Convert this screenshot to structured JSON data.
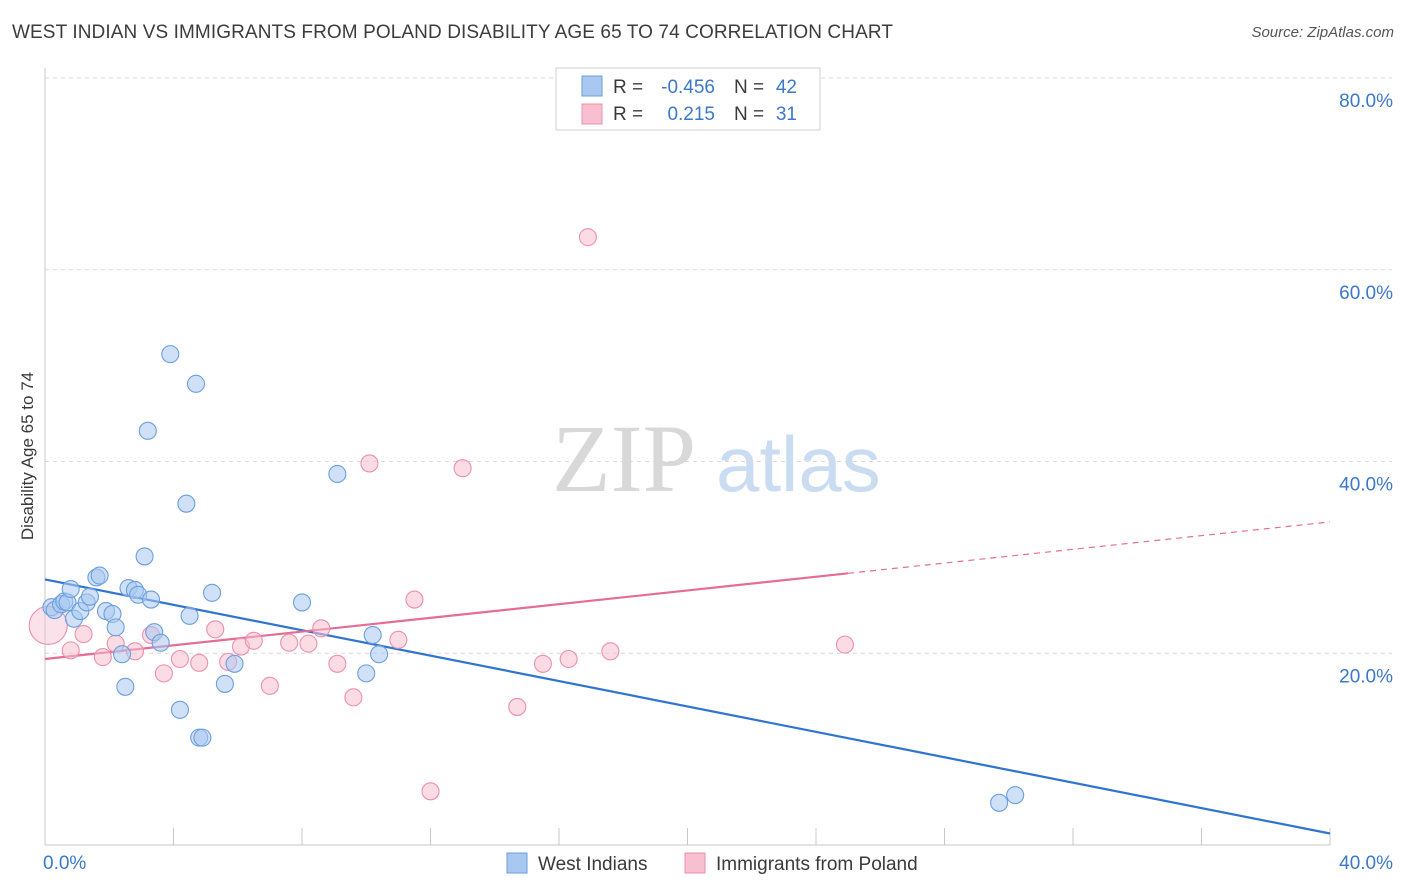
{
  "header": {
    "title": "WEST INDIAN VS IMMIGRANTS FROM POLAND DISABILITY AGE 65 TO 74 CORRELATION CHART",
    "source": "Source: ZipAtlas.com"
  },
  "watermark": {
    "zip": "ZIP",
    "atlas": "atlas"
  },
  "colors": {
    "blue_fill": "#a9c8f0",
    "blue_stroke": "#6a9fde",
    "blue_line": "#2f74d0",
    "pink_fill": "#f7bfd0",
    "pink_stroke": "#ec8fae",
    "pink_line": "#e56d95",
    "tick_text": "#3b78c9",
    "grid": "#d9d9d9"
  },
  "legend": {
    "rows": [
      {
        "r_label": "R =",
        "r_value": "-0.456",
        "n_label": "N =",
        "n_value": "42"
      },
      {
        "r_label": "R =",
        "r_value": "0.215",
        "n_label": "N =",
        "n_value": "31"
      }
    ]
  },
  "bottom_legend": {
    "series": [
      "West Indians",
      "Immigrants from Poland"
    ]
  },
  "chart_data": {
    "type": "scatter",
    "title": "WEST INDIAN VS IMMIGRANTS FROM POLAND DISABILITY AGE 65 TO 74 CORRELATION CHART",
    "xlabel": "",
    "ylabel": "Disability Age 65 to 74",
    "xlim": [
      0,
      40
    ],
    "ylim": [
      0,
      80
    ],
    "x_tick_labels": [
      "0.0%",
      "40.0%"
    ],
    "y_tick_labels": [
      "20.0%",
      "40.0%",
      "60.0%",
      "80.0%"
    ],
    "y_ticks": [
      20,
      40,
      60,
      80
    ],
    "grid": true,
    "series": [
      {
        "name": "West Indians",
        "r": -0.456,
        "n": 42,
        "trend": {
          "x0": 0,
          "y0": 27.7,
          "x1": 40,
          "y1": 1.2,
          "solid_to": 40
        },
        "points": [
          [
            0.2,
            24.8
          ],
          [
            0.3,
            24.5
          ],
          [
            0.5,
            25.1
          ],
          [
            0.6,
            25.4
          ],
          [
            0.7,
            25.3
          ],
          [
            0.8,
            26.7
          ],
          [
            0.9,
            23.6
          ],
          [
            1.1,
            24.4
          ],
          [
            1.3,
            25.3
          ],
          [
            1.4,
            25.9
          ],
          [
            1.6,
            27.9
          ],
          [
            1.7,
            28.1
          ],
          [
            1.9,
            24.4
          ],
          [
            2.1,
            24.1
          ],
          [
            2.2,
            22.7
          ],
          [
            2.4,
            19.9
          ],
          [
            2.5,
            16.5
          ],
          [
            2.6,
            26.8
          ],
          [
            2.8,
            26.6
          ],
          [
            2.9,
            26.1
          ],
          [
            3.1,
            30.1
          ],
          [
            3.2,
            43.2
          ],
          [
            3.3,
            25.6
          ],
          [
            3.4,
            22.2
          ],
          [
            3.6,
            21.1
          ],
          [
            3.9,
            51.2
          ],
          [
            4.2,
            14.1
          ],
          [
            4.4,
            35.6
          ],
          [
            4.5,
            23.9
          ],
          [
            4.7,
            48.1
          ],
          [
            4.8,
            11.2
          ],
          [
            4.9,
            11.2
          ],
          [
            5.2,
            26.3
          ],
          [
            5.6,
            16.8
          ],
          [
            5.9,
            18.9
          ],
          [
            8.0,
            25.3
          ],
          [
            9.1,
            38.7
          ],
          [
            10.0,
            17.9
          ],
          [
            10.2,
            21.9
          ],
          [
            10.4,
            19.9
          ],
          [
            29.7,
            4.4
          ],
          [
            30.2,
            5.2
          ]
        ]
      },
      {
        "name": "Immigrants from Poland",
        "r": 0.215,
        "n": 31,
        "trend": {
          "x0": 0,
          "y0": 19.4,
          "x1": 40,
          "y1": 33.7,
          "solid_to": 25
        },
        "points": [
          [
            0.1,
            22.9
          ],
          [
            0.8,
            20.3
          ],
          [
            1.2,
            22.0
          ],
          [
            1.8,
            19.6
          ],
          [
            2.2,
            21.0
          ],
          [
            2.8,
            20.2
          ],
          [
            3.3,
            21.9
          ],
          [
            3.7,
            17.9
          ],
          [
            4.2,
            19.4
          ],
          [
            4.8,
            19.0
          ],
          [
            5.3,
            22.5
          ],
          [
            5.7,
            19.1
          ],
          [
            6.1,
            20.7
          ],
          [
            6.5,
            21.3
          ],
          [
            7.0,
            16.6
          ],
          [
            7.6,
            21.1
          ],
          [
            8.2,
            21.0
          ],
          [
            8.6,
            22.6
          ],
          [
            9.1,
            18.9
          ],
          [
            9.6,
            15.4
          ],
          [
            10.1,
            39.8
          ],
          [
            11.0,
            21.4
          ],
          [
            11.5,
            25.6
          ],
          [
            12.0,
            5.6
          ],
          [
            13.0,
            39.3
          ],
          [
            14.7,
            14.4
          ],
          [
            15.5,
            18.9
          ],
          [
            16.3,
            19.4
          ],
          [
            16.9,
            63.4
          ],
          [
            17.6,
            20.2
          ],
          [
            24.9,
            20.9
          ]
        ]
      }
    ]
  }
}
